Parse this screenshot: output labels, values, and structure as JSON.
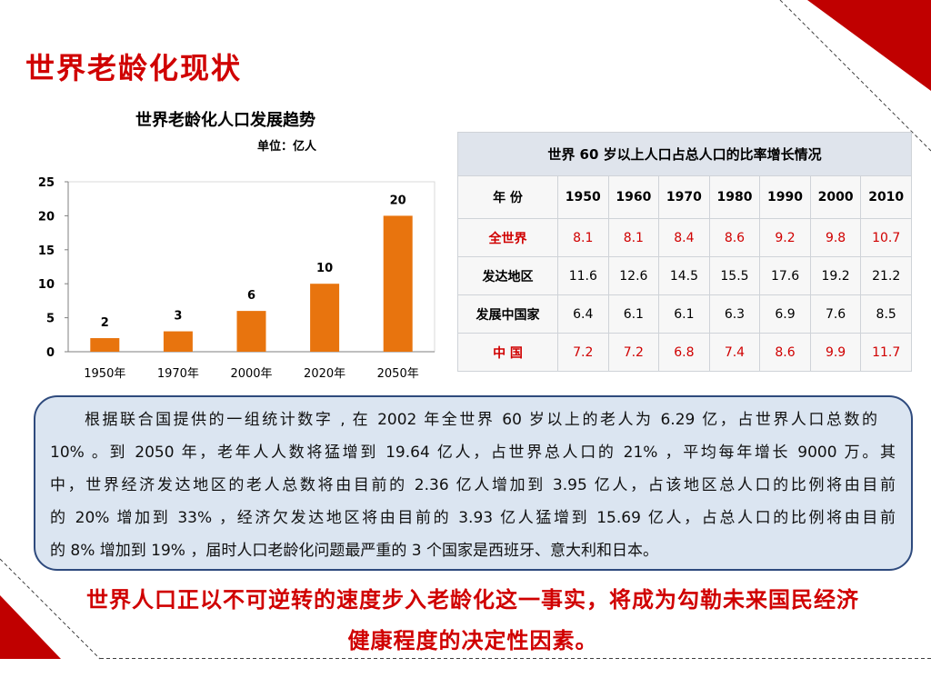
{
  "colors": {
    "accent": "#d00000",
    "corner": "#c00000",
    "note_box_background": "#dbe5f1",
    "note_box_border": "#2e4a7d",
    "table_title_background": "#dfe4ec"
  },
  "slide": {
    "title": "世界老龄化现状"
  },
  "chart_data": {
    "type": "bar",
    "title": "世界老龄化人口发展趋势",
    "unit_label": "单位：亿人",
    "categories": [
      "1950年",
      "1970年",
      "2000年",
      "2020年",
      "2050年"
    ],
    "values": [
      2,
      3,
      6,
      10,
      20
    ],
    "yticks": [
      0,
      5,
      10,
      15,
      20,
      25
    ],
    "ylim": [
      0,
      25
    ],
    "xlabel": "",
    "ylabel": "",
    "data_labels": true,
    "grid": false,
    "bar_color": "#e8740e"
  },
  "table": {
    "title": "世界 60 岁以上人口占总人口的比率增长情况",
    "corner_label": "年 份",
    "years": [
      "1950",
      "1960",
      "1970",
      "1980",
      "1990",
      "2000",
      "2010"
    ],
    "rows": [
      {
        "label": "全世界",
        "highlight": true,
        "values": [
          "8.1",
          "8.1",
          "8.4",
          "8.6",
          "9.2",
          "9.8",
          "10.7"
        ]
      },
      {
        "label": "发达地区",
        "highlight": false,
        "values": [
          "11.6",
          "12.6",
          "14.5",
          "15.5",
          "17.6",
          "19.2",
          "21.2"
        ]
      },
      {
        "label": "发展中国家",
        "highlight": false,
        "values": [
          "6.4",
          "6.1",
          "6.1",
          "6.3",
          "6.9",
          "7.6",
          "8.5"
        ]
      },
      {
        "label": "中 国",
        "highlight": true,
        "values": [
          "7.2",
          "7.2",
          "6.8",
          "7.4",
          "8.6",
          "9.9",
          "11.7"
        ]
      }
    ]
  },
  "note": {
    "lines": [
      "根据联合国提供的一组统计数字 , 在 2002 年全世界 60 岁以上的老人为 6.29 亿，占世界人口总数的",
      "10% 。到 2050 年，老年人人数将猛增到 19.64 亿人，占世界总人口的 21% ，平均每年增长 9000 万。其",
      "中，世界经济发达地区的老人总数将由目前的 2.36 亿人增加到 3.95 亿人，占该地区总人口的比例将由目前",
      "的 20% 增加到 33% ，经济欠发达地区将由目前的 3.93 亿人猛增到 15.69 亿人，占总人口的比例将由目前",
      "的 8% 增加到 19% ，届时人口老龄化问题最严重的 3 个国家是西班牙、意大利和日本。"
    ]
  },
  "conclusion": {
    "lines": [
      "世界人口正以不可逆转的速度步入老龄化这一事实，将成为勾勒未来国民经济",
      "健康程度的决定性因素。"
    ]
  }
}
